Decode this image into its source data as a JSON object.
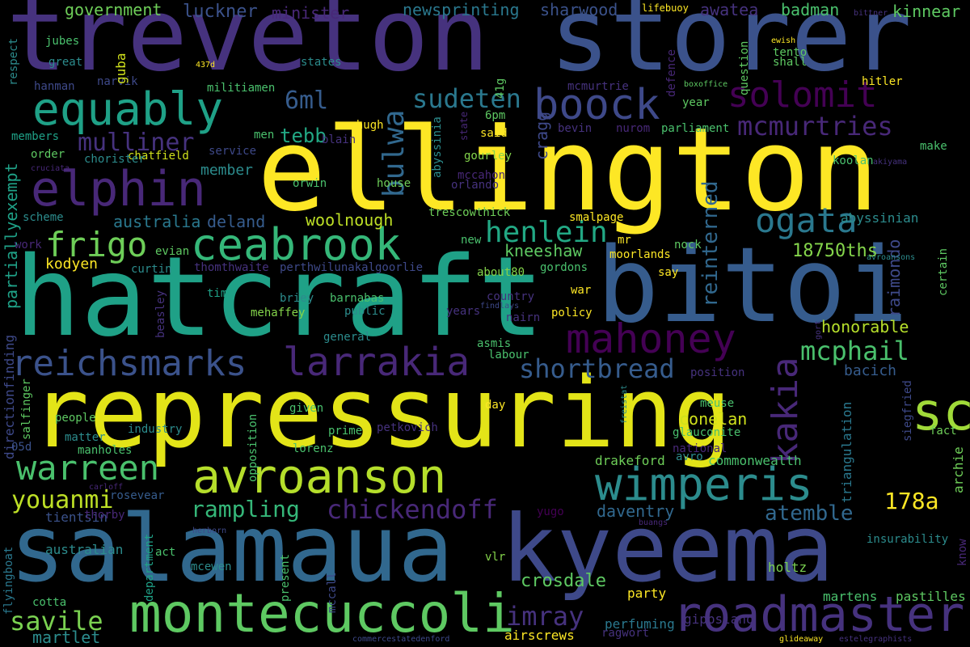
{
  "background": "#000000",
  "palette": [
    "#440154",
    "#46327e",
    "#365c8d",
    "#277f8e",
    "#1fa187",
    "#4ac16d",
    "#a0da39",
    "#fde725"
  ],
  "words": {
    "w1": "treveton",
    "w2": "storer",
    "w3": "ellington",
    "w4": "hatcraft",
    "w5": "bitoi",
    "w6": "repressuring",
    "w7": "salamaua",
    "w8": "kyeema",
    "w9": "montecuccoli",
    "w10": "roadmaster",
    "w11": "avroanson",
    "w12": "equably",
    "w13": "elphin",
    "w14": "boock",
    "w15": "solomit",
    "w16": "ceabrook",
    "w17": "frigo",
    "w18": "reichsmarks",
    "w19": "larrakia",
    "w20": "mahoney",
    "w21": "scholfield",
    "w22": "wimperis",
    "w23": "warreen",
    "w24": "ogata",
    "w25": "kakia",
    "w26": "mcmurtries",
    "w27": "mcphail",
    "w28": "shortbread",
    "w29": "henlein",
    "w30": "mulliner",
    "w31": "chickendoff",
    "w32": "youanmi",
    "w33": "savile",
    "w34": "rampling",
    "w35": "imray",
    "w36": "sudeten",
    "w37": "bulwa",
    "w38": "6ml",
    "w39": "tebb",
    "w40": "reinterned",
    "w41": "178a",
    "w42": "atemble",
    "w43": "government",
    "w44": "luckner",
    "w45": "minister",
    "w46": "newsprinting",
    "w47": "sharwood",
    "w48": "awatea",
    "w49": "badman",
    "w50": "kinnear",
    "w51": "crosdale",
    "w52": "daventry",
    "w53": "conelan",
    "w54": "honorable",
    "w55": "18750ths",
    "w56": "kneeshaw",
    "w57": "woolnough",
    "w58": "australia",
    "w59": "deland",
    "w60": "kodyen",
    "w61": "member",
    "w62": "raimondo",
    "w63": "martlet",
    "w64": "bacich",
    "w65": "cragg",
    "w66": "abyssinian",
    "w67": "partiallyexempt",
    "w68": "directionfinding",
    "w69": "drakeford",
    "w70": "commonwealth",
    "w71": "gippsland",
    "w72": "martens",
    "w73": "pastilles",
    "w74": "perfuming",
    "w75": "ragwort",
    "w76": "airscrews",
    "w77": "holtz",
    "w78": "party",
    "w79": "archie",
    "w80": "insurability",
    "w81": "triangulation",
    "w82": "tientsin",
    "w83": "thorby",
    "w84": "rosevear",
    "w85": "australian",
    "w86": "act",
    "w87": "mcewen",
    "w88": "department",
    "w89": "present",
    "w90": "mccall",
    "w91": "vlr",
    "w92": "cotta",
    "w93": "flyingboat",
    "w94": "yugo",
    "w95": "buangs",
    "w96": "herborn",
    "w97": "carloff",
    "w98": "know",
    "w99": "opposition",
    "w100": "lorenz",
    "w101": "national",
    "w102": "avro",
    "w103": "siegfried",
    "w104": "fact",
    "w105": "matter",
    "w106": "manholes",
    "w107": "05d",
    "w108": "people",
    "w109": "industry",
    "w110": "prime",
    "w111": "petkovich",
    "w112": "glauconite",
    "w113": "meuse",
    "w114": "freistat",
    "w115": "day",
    "w116": "given",
    "w117": "position",
    "w118": "salfinger",
    "w119": "general",
    "w120": "asmis",
    "w121": "labour",
    "w122": "nairn",
    "w123": "policy",
    "w124": "war",
    "w125": "years",
    "w126": "findlays",
    "w127": "country",
    "w128": "public",
    "w129": "barnabas",
    "w130": "briey",
    "w131": "mehaffey",
    "w132": "beasley",
    "w133": "time",
    "w134": "gordons",
    "w135": "say",
    "w136": "certain",
    "w137": "thomthwaite",
    "w138": "curtin",
    "w139": "evian",
    "w140": "work",
    "w141": "perthwilunakalgoorlie",
    "w142": "about80",
    "w143": "nock",
    "w144": "mr",
    "w145": "moorlands",
    "w146": "smalpage",
    "w147": "avroansons",
    "w148": "new",
    "w149": "trescowthick",
    "w150": "orlando",
    "w151": "house",
    "w152": "orwin",
    "w153": "mccahon",
    "w154": "koolan",
    "w155": "akiyama",
    "w156": "make",
    "w157": "blain",
    "w158": "gourley",
    "w159": "state",
    "w160": "abyssinia",
    "w161": "chatfield",
    "w162": "chorister",
    "w163": "cruciata",
    "w164": "order",
    "w165": "members",
    "w166": "scheme",
    "w167": "service",
    "w168": "men",
    "w169": "mchugh",
    "w170": "said",
    "w171": "6pm",
    "w172": "bevin",
    "w173": "nurom",
    "w174": "parliament",
    "w175": "year",
    "w176": "mcmurtrie",
    "w177": "41g",
    "w178": "defence",
    "w179": "boxoffice",
    "w180": "question",
    "w181": "hitler",
    "w182": "tento",
    "w183": "shall",
    "w184": "ewish",
    "w185": "bittner",
    "w186": "lifebuoy",
    "w187": "states",
    "w188": "437d",
    "w189": "jubes",
    "w190": "great",
    "w191": "hanman",
    "w192": "narvik",
    "w193": "militiamen",
    "w194": "guba",
    "w195": "respect",
    "w196": "gort",
    "w197": "commercestatedenford",
    "w198": "glideaway",
    "w199": "estelegraphists"
  }
}
